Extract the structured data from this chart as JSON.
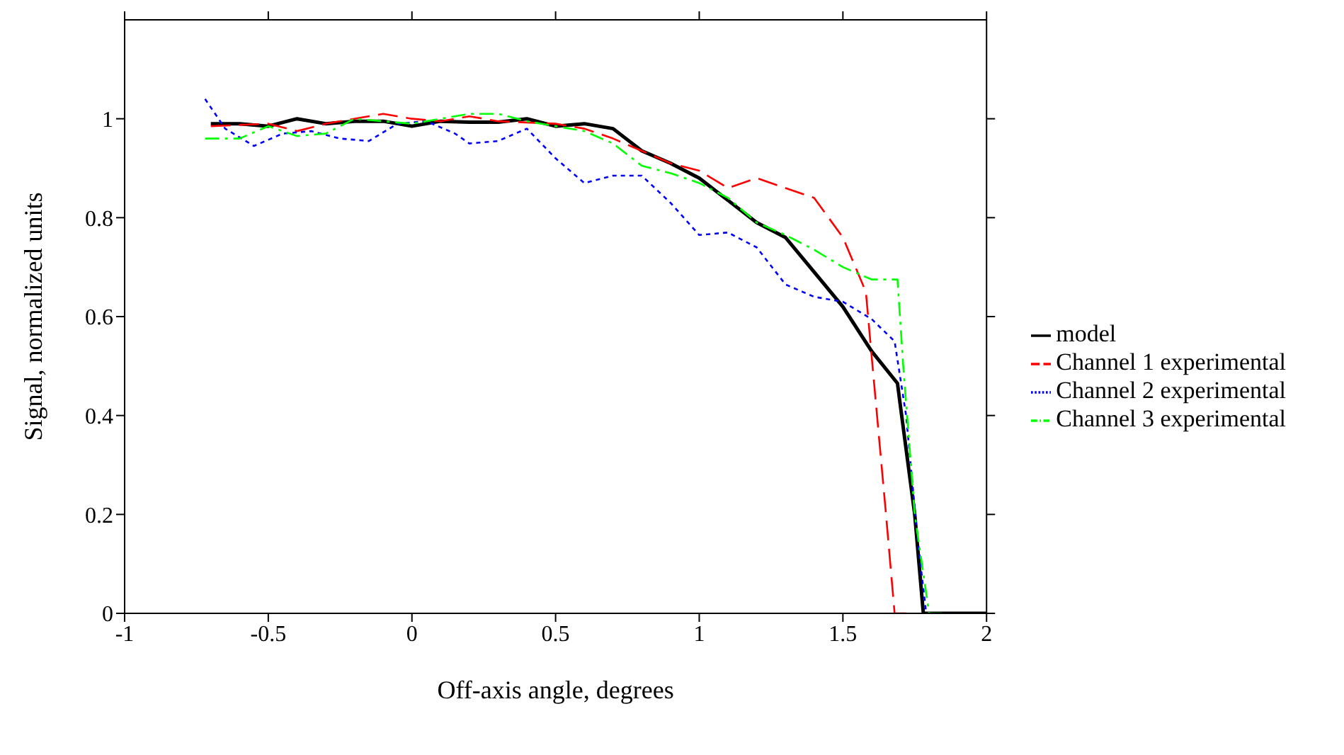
{
  "chart_data": {
    "type": "line",
    "xlabel": "Off-axis angle, degrees",
    "ylabel": "Signal, normalized units",
    "xlim": [
      -1,
      2
    ],
    "xticks": [
      -1,
      -0.5,
      0,
      0.5,
      1,
      1.5,
      2
    ],
    "ylim": [
      0,
      1.2
    ],
    "yticks": [
      0,
      0.2,
      0.4,
      0.6,
      0.8,
      1
    ],
    "legend": "right",
    "marker": "none",
    "series": [
      {
        "name": "model",
        "color": "#000000",
        "line_style": "solid",
        "x": [
          -0.7,
          -0.6,
          -0.5,
          -0.4,
          -0.3,
          -0.2,
          -0.1,
          0,
          0.1,
          0.2,
          0.3,
          0.4,
          0.5,
          0.6,
          0.7,
          0.8,
          0.9,
          1.0,
          1.1,
          1.2,
          1.3,
          1.4,
          1.5,
          1.6,
          1.69,
          1.7,
          1.75,
          1.78,
          2.0
        ],
        "values": [
          0.99,
          0.99,
          0.985,
          1.0,
          0.99,
          0.995,
          0.995,
          0.985,
          0.995,
          0.993,
          0.993,
          1.0,
          0.985,
          0.99,
          0.98,
          0.935,
          0.91,
          0.88,
          0.835,
          0.79,
          0.76,
          0.69,
          0.62,
          0.53,
          0.465,
          0.42,
          0.2,
          0,
          0
        ]
      },
      {
        "name": "Channel 1 experimental",
        "color": "#ff0000",
        "line_style": "dashed",
        "x": [
          -0.7,
          -0.5,
          -0.4,
          -0.3,
          -0.1,
          0,
          0.1,
          0.2,
          0.3,
          0.5,
          0.6,
          0.7,
          0.8,
          0.9,
          1.0,
          1.1,
          1.2,
          1.3,
          1.4,
          1.5,
          1.58,
          1.6,
          1.65,
          1.68,
          1.72
        ],
        "values": [
          0.985,
          0.99,
          0.975,
          0.99,
          1.01,
          1.0,
          0.995,
          1.005,
          0.995,
          0.99,
          0.98,
          0.96,
          0.935,
          0.91,
          0.895,
          0.86,
          0.88,
          0.86,
          0.84,
          0.76,
          0.65,
          0.52,
          0.2,
          0,
          0
        ]
      },
      {
        "name": "Channel 2 experimental",
        "color": "#0000ff",
        "line_style": "dotted",
        "x": [
          -0.72,
          -0.65,
          -0.55,
          -0.45,
          -0.35,
          -0.25,
          -0.15,
          -0.05,
          0.05,
          0.15,
          0.2,
          0.3,
          0.4,
          0.5,
          0.6,
          0.7,
          0.8,
          0.9,
          1.0,
          1.1,
          1.2,
          1.3,
          1.4,
          1.5,
          1.6,
          1.68,
          1.72,
          1.76,
          1.79
        ],
        "values": [
          1.04,
          0.98,
          0.945,
          0.97,
          0.975,
          0.96,
          0.955,
          0.99,
          0.995,
          0.97,
          0.95,
          0.955,
          0.98,
          0.92,
          0.87,
          0.885,
          0.885,
          0.83,
          0.765,
          0.77,
          0.74,
          0.665,
          0.64,
          0.63,
          0.595,
          0.55,
          0.4,
          0.15,
          0
        ]
      },
      {
        "name": "Channel 3 experimental",
        "color": "#00ff00",
        "line_style": "dashdot",
        "x": [
          -0.72,
          -0.6,
          -0.5,
          -0.4,
          -0.3,
          -0.2,
          -0.1,
          0,
          0.1,
          0.2,
          0.3,
          0.4,
          0.5,
          0.6,
          0.7,
          0.8,
          0.9,
          1.0,
          1.1,
          1.2,
          1.3,
          1.4,
          1.5,
          1.6,
          1.69,
          1.71,
          1.75,
          1.8,
          1.85
        ],
        "values": [
          0.96,
          0.96,
          0.985,
          0.965,
          0.97,
          1.0,
          0.995,
          0.99,
          1.0,
          1.01,
          1.01,
          0.995,
          0.985,
          0.975,
          0.95,
          0.905,
          0.89,
          0.87,
          0.84,
          0.79,
          0.765,
          0.735,
          0.7,
          0.675,
          0.675,
          0.5,
          0.2,
          0,
          0
        ]
      }
    ]
  }
}
